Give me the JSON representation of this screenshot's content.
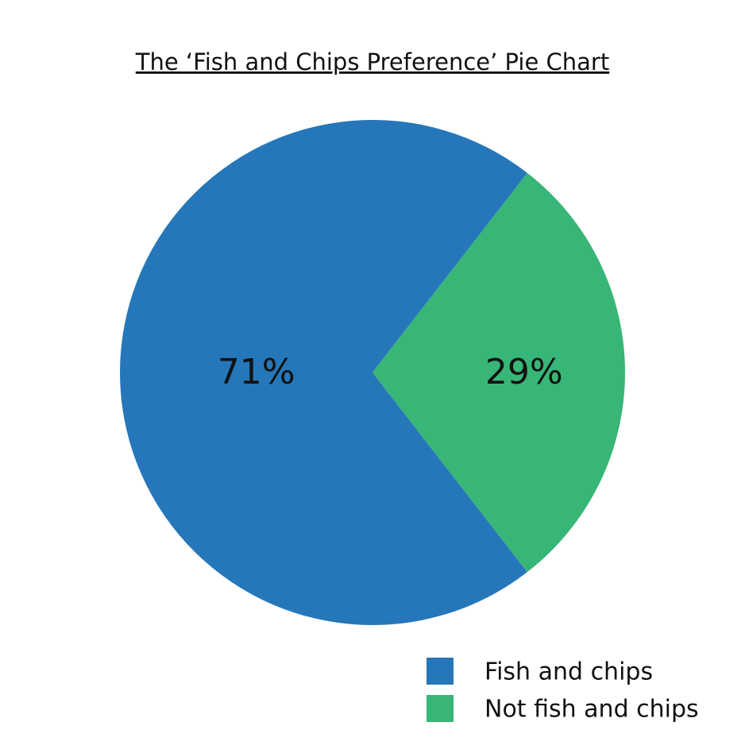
{
  "chart_data": {
    "type": "pie",
    "title": "The ‘Fish and Chips Preference’ Pie Chart",
    "categories": [
      "Fish and chips",
      "Not fish and chips"
    ],
    "values": [
      71,
      29
    ],
    "value_labels": [
      "71%",
      "29%"
    ],
    "colors": [
      "#2577b9",
      "#38b677"
    ]
  }
}
